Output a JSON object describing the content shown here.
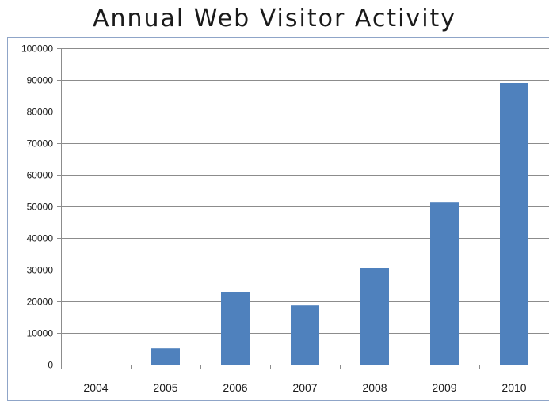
{
  "chart_data": {
    "type": "bar",
    "title": "Annual Web Visitor Activity",
    "xlabel": "",
    "ylabel": "",
    "categories": [
      "2004",
      "2005",
      "2006",
      "2007",
      "2008",
      "2009",
      "2010"
    ],
    "values": [
      0,
      5200,
      23000,
      18700,
      30500,
      51200,
      89000
    ],
    "ylim": [
      0,
      100000
    ],
    "yticks": [
      0,
      10000,
      20000,
      30000,
      40000,
      50000,
      60000,
      70000,
      80000,
      90000,
      100000
    ],
    "ytick_labels": [
      "0",
      "10000",
      "20000",
      "30000",
      "40000",
      "50000",
      "60000",
      "70000",
      "80000",
      "90000",
      "100000"
    ],
    "grid": true,
    "bar_color": "#4f81bd",
    "grid_color": "#8c8c8c",
    "legend": "none"
  }
}
